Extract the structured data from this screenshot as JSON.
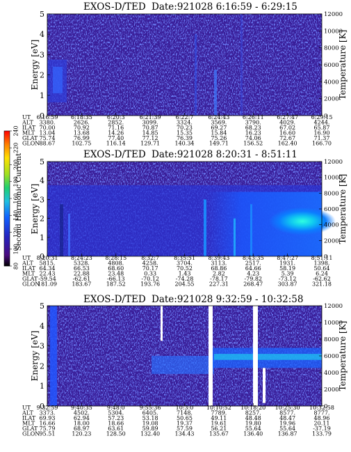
{
  "chart_data": {
    "type": "heatmap",
    "colorbar": {
      "label": "Second Harmonic Current",
      "ticks": [
        "80",
        "100",
        "120",
        "140",
        "160",
        "180",
        "200",
        "220",
        "240"
      ],
      "colors": [
        "#000000",
        "#5a0a8a",
        "#2030c0",
        "#1060ff",
        "#20c0e0",
        "#20d070",
        "#a0e020",
        "#ffe000",
        "#ff8000",
        "#ff0000"
      ]
    },
    "panels": [
      {
        "title": "EXOS-D/TED",
        "date": "Date:921028  6:16:59 - 6:29:15",
        "ylabel_left": "Energy [eV]",
        "ylabel_right": "Temperature [K]",
        "yticks_left": [
          "0",
          "1",
          "2",
          "3",
          "4",
          "5"
        ],
        "yticks_right": [
          "0",
          "2000",
          "4000",
          "6000",
          "8000",
          "10000",
          "12000"
        ],
        "row_labels": [
          "UT",
          "ALT",
          "ILAT",
          "MLT",
          "GLAT",
          "GLON"
        ],
        "columns": [
          [
            "6:16:59",
            "3380.",
            "70.00",
            "13.04",
            "75.74",
            "88.67"
          ],
          [
            "6:18:35",
            "2626.",
            "70.92",
            "13.68",
            "76.99",
            "102.75"
          ],
          [
            "6:20:3",
            "2852.",
            "71.16",
            "14.26",
            "77.40",
            "116.14"
          ],
          [
            "6:21:39",
            "3099.",
            "70.87",
            "14.85",
            "77.12",
            "129.71"
          ],
          [
            "6:22:7",
            "3324.",
            "70.23",
            "15.35",
            "76.39",
            "140.34"
          ],
          [
            "6:24:43",
            "3569.",
            "69.27",
            "15.84",
            "75.26",
            "149.71"
          ],
          [
            "6:26:11",
            "3790.",
            "68.23",
            "16.23",
            "74.06",
            "156.52"
          ],
          [
            "6:27:47",
            "4029.",
            "67.02",
            "16.60",
            "72.67",
            "162.40"
          ],
          [
            "6:29:15",
            "4244.",
            "65.87",
            "16.90",
            "71.37",
            "166.70"
          ]
        ]
      },
      {
        "title": "EXOS-D/TED",
        "date": "Date:921028  8:20:31 - 8:51:11",
        "ylabel_left": "Energy [eV]",
        "ylabel_right": "Temperature [K]",
        "yticks_left": [
          "0",
          "1",
          "2",
          "3",
          "4",
          "5"
        ],
        "yticks_right": [
          "0",
          "2000",
          "4000",
          "6000",
          "8000",
          "10000",
          "12000"
        ],
        "row_labels": [
          "UT",
          "ALT",
          "ILAT",
          "MLT",
          "GLAT",
          "GLON"
        ],
        "columns": [
          [
            "8:20:31",
            "5815.",
            "64.34",
            "22.43",
            "-59.54",
            "181.09"
          ],
          [
            "8:24:23",
            "5328.",
            "66.53",
            "22.88",
            "-62.61",
            "183.67"
          ],
          [
            "8:28:15",
            "4808.",
            "68.60",
            "23.48",
            "-66.13",
            "187.52"
          ],
          [
            "8:32:7",
            "4258.",
            "70.17",
            "0.33",
            "-70.12",
            "193.76"
          ],
          [
            "8:35:51",
            "3704.",
            "70.52",
            "1.43",
            "-74.28",
            "204.55"
          ],
          [
            "8:39:43",
            "3113.",
            "68.86",
            "2.82",
            "-78.17",
            "227.31"
          ],
          [
            "8:43:35",
            "2517.",
            "64.66",
            "4.23",
            "-79.82",
            "268.47"
          ],
          [
            "8:47:27",
            "1931.",
            "58.19",
            "5.39",
            "-73.12",
            "303.87"
          ],
          [
            "8:51:11",
            "1398.",
            "50.64",
            "6.24",
            "-62.62",
            "321.18"
          ]
        ]
      },
      {
        "title": "EXOS-D/TED",
        "date": "Date:921028  9:32:59 - 10:32:58",
        "ylabel_left": "Energy [eV]",
        "ylabel_right": "Temperature [K]",
        "yticks_left": [
          "0",
          "1",
          "2",
          "3",
          "4",
          "5"
        ],
        "yticks_right": [
          "0",
          "2000",
          "4000",
          "6000",
          "8000",
          "10000",
          "12000"
        ],
        "row_labels": [
          "UT",
          "ALT",
          "ILAT",
          "MLT",
          "GLAT",
          "GLON"
        ],
        "columns": [
          [
            "9:32:59",
            "3373.",
            "69.93",
            "16.66",
            "75.79",
            "95.51"
          ],
          [
            "9:40:35",
            "4502.",
            "62.94",
            "18.00",
            "68.97",
            "120.23"
          ],
          [
            "9:48:0",
            "5304.",
            "57.23",
            "18.66",
            "63.61",
            "128.50"
          ],
          [
            "9:55:36",
            "6405.",
            "53.18",
            "19.08",
            "59.89",
            "132.40"
          ],
          [
            "10:3:0",
            "7148.",
            "50.65",
            "19.37",
            "57.59",
            "134.43"
          ],
          [
            "10:10:52",
            "7789.",
            "49.11",
            "19.61",
            "56.21",
            "135.67"
          ],
          [
            "10:18:20",
            "8257.",
            "48.48",
            "19.80",
            "55.64",
            "136.40"
          ],
          [
            "10:25:30",
            "8577.",
            "48.47",
            "19.96",
            "55.64",
            "136.87"
          ],
          [
            "10:32:58",
            "8777.",
            "48.96",
            "20.11",
            "-37.19",
            "133.79"
          ]
        ]
      }
    ]
  }
}
